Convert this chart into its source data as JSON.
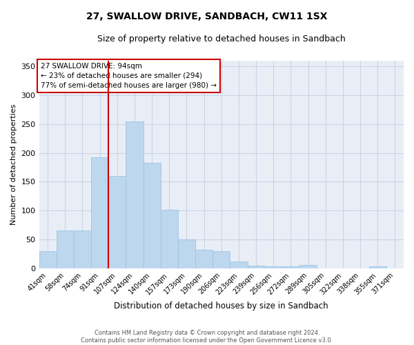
{
  "title": "27, SWALLOW DRIVE, SANDBACH, CW11 1SX",
  "subtitle": "Size of property relative to detached houses in Sandbach",
  "xlabel": "Distribution of detached houses by size in Sandbach",
  "ylabel": "Number of detached properties",
  "footer_line1": "Contains HM Land Registry data © Crown copyright and database right 2024.",
  "footer_line2": "Contains public sector information licensed under the Open Government Licence v3.0.",
  "annotation_line1": "27 SWALLOW DRIVE: 94sqm",
  "annotation_line2": "← 23% of detached houses are smaller (294)",
  "annotation_line3": "77% of semi-detached houses are larger (980) →",
  "bar_color": "#BDD7EE",
  "bar_edgecolor": "#9DC3E6",
  "redline_color": "#CC0000",
  "background_color": "#FFFFFF",
  "plot_bg_color": "#E9EEF6",
  "grid_color": "#C8D4E8",
  "categories": [
    "41sqm",
    "58sqm",
    "74sqm",
    "91sqm",
    "107sqm",
    "124sqm",
    "140sqm",
    "157sqm",
    "173sqm",
    "190sqm",
    "206sqm",
    "223sqm",
    "239sqm",
    "256sqm",
    "272sqm",
    "289sqm",
    "305sqm",
    "322sqm",
    "338sqm",
    "355sqm",
    "371sqm"
  ],
  "values": [
    30,
    65,
    65,
    192,
    160,
    255,
    183,
    102,
    50,
    32,
    30,
    12,
    4,
    3,
    3,
    6,
    0,
    0,
    0,
    3,
    0
  ],
  "ylim": [
    0,
    360
  ],
  "yticks": [
    0,
    50,
    100,
    150,
    200,
    250,
    300,
    350
  ],
  "redline_index": 3.5,
  "title_fontsize": 10,
  "subtitle_fontsize": 9,
  "ylabel_fontsize": 8,
  "xlabel_fontsize": 8.5,
  "tick_fontsize": 7,
  "ytick_fontsize": 8,
  "annotation_fontsize": 7.5,
  "footer_fontsize": 6
}
